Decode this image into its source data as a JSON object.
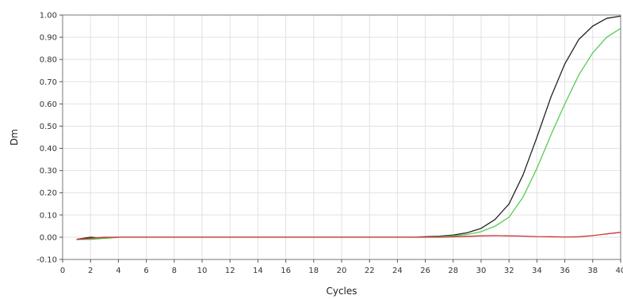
{
  "chart_data": {
    "type": "line",
    "title": "",
    "xlabel": "Cycles",
    "ylabel": "Dm",
    "xlim": [
      0,
      40
    ],
    "ylim": [
      -0.1,
      1.0
    ],
    "x_ticks": [
      0,
      2,
      4,
      6,
      8,
      10,
      12,
      14,
      16,
      18,
      20,
      22,
      24,
      26,
      28,
      30,
      32,
      34,
      36,
      38,
      40
    ],
    "x_tick_labels": [
      "0",
      "2",
      "4",
      "6",
      "8",
      "10",
      "12",
      "14",
      "16",
      "18",
      "20",
      "22",
      "24",
      "26",
      "28",
      "30",
      "32",
      "34",
      "36",
      "38",
      "40"
    ],
    "y_ticks": [
      -0.1,
      0,
      0.1,
      0.2,
      0.3,
      0.4,
      0.5,
      0.6,
      0.7,
      0.8,
      0.9,
      1.0
    ],
    "y_tick_labels": [
      "-0.10",
      "0.00",
      "0.10",
      "0.20",
      "0.30",
      "0.40",
      "0.50",
      "0.60",
      "0.70",
      "0.80",
      "0.90",
      "1.00"
    ],
    "grid": true,
    "legend": "none",
    "series": [
      {
        "color": "#222222",
        "x": [
          1,
          2,
          3,
          4,
          5,
          6,
          7,
          8,
          9,
          10,
          11,
          12,
          13,
          14,
          15,
          16,
          17,
          18,
          19,
          20,
          21,
          22,
          23,
          24,
          25,
          26,
          27,
          28,
          29,
          30,
          31,
          32,
          33,
          34,
          35,
          36,
          37,
          38,
          39,
          40
        ],
        "values": [
          -0.01,
          0.0,
          -0.005,
          0.0,
          0.0,
          0.0,
          0.0,
          0.0,
          0.0,
          0.0,
          0.0,
          0.0,
          0.0,
          0.0,
          0.0,
          0.0,
          0.0,
          0.0,
          0.0,
          0.0,
          0.0,
          0.0,
          0.0,
          0.0,
          0.0,
          0.002,
          0.005,
          0.01,
          0.02,
          0.04,
          0.08,
          0.15,
          0.28,
          0.45,
          0.63,
          0.78,
          0.89,
          0.95,
          0.985,
          0.995
        ]
      },
      {
        "color": "#55cc55",
        "x": [
          1,
          2,
          3,
          4,
          5,
          6,
          7,
          8,
          9,
          10,
          11,
          12,
          13,
          14,
          15,
          16,
          17,
          18,
          19,
          20,
          21,
          22,
          23,
          24,
          25,
          26,
          27,
          28,
          29,
          30,
          31,
          32,
          33,
          34,
          35,
          36,
          37,
          38,
          39,
          40
        ],
        "values": [
          -0.01,
          -0.01,
          -0.005,
          0.0,
          0.0,
          0.0,
          0.0,
          0.0,
          0.0,
          0.0,
          0.0,
          0.0,
          0.0,
          0.0,
          0.0,
          0.0,
          0.0,
          0.0,
          0.0,
          0.0,
          0.0,
          0.0,
          0.0,
          0.0,
          0.0,
          0.0,
          0.003,
          0.006,
          0.012,
          0.025,
          0.05,
          0.09,
          0.18,
          0.31,
          0.46,
          0.6,
          0.73,
          0.83,
          0.9,
          0.94
        ]
      },
      {
        "color": "#cc3333",
        "x": [
          1,
          2,
          3,
          4,
          5,
          6,
          7,
          8,
          9,
          10,
          11,
          12,
          13,
          14,
          15,
          16,
          17,
          18,
          19,
          20,
          21,
          22,
          23,
          24,
          25,
          26,
          27,
          28,
          29,
          30,
          31,
          32,
          33,
          34,
          35,
          36,
          37,
          38,
          39,
          40
        ],
        "values": [
          -0.01,
          -0.005,
          0.0,
          0.0,
          0.0,
          0.0,
          0.0,
          0.0,
          0.0,
          0.0,
          0.0,
          0.0,
          0.0,
          0.0,
          0.0,
          0.0,
          0.0,
          0.0,
          0.0,
          0.0,
          0.0,
          0.0,
          0.0,
          0.0,
          0.0,
          0.0,
          0.0,
          0.002,
          0.004,
          0.006,
          0.007,
          0.006,
          0.005,
          0.003,
          0.002,
          0.001,
          0.002,
          0.007,
          0.015,
          0.022
        ]
      }
    ]
  }
}
